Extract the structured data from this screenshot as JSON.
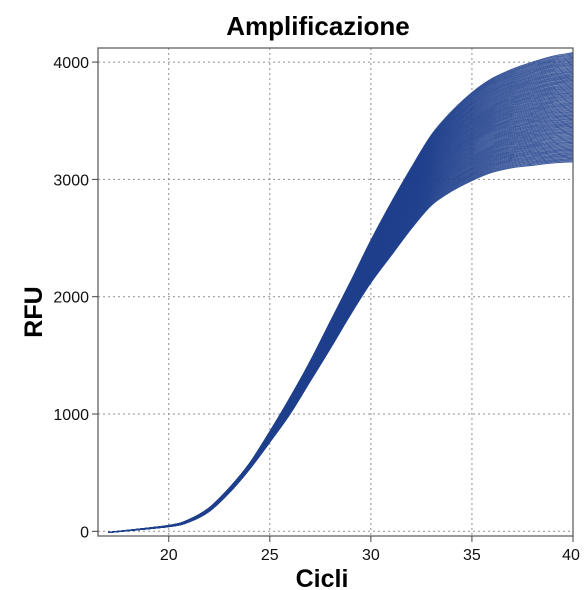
{
  "chart_data": {
    "type": "line",
    "title": "Amplificazione",
    "xlabel": "Cicli",
    "ylabel": "RFU",
    "xlim": [
      16.5,
      40
    ],
    "ylim": [
      -40,
      4120
    ],
    "xticks": [
      "20",
      "25",
      "30",
      "35",
      "40"
    ],
    "xtick_values": [
      20,
      25,
      30,
      35,
      40
    ],
    "yticks": [
      "0",
      "1000",
      "2000",
      "3000",
      "4000"
    ],
    "ytick_values": [
      0,
      1000,
      2000,
      3000,
      4000
    ],
    "grid": true,
    "series_color": "#1f3f8c",
    "series_count": 96,
    "series_envelope": {
      "x": [
        17,
        20,
        21,
        22,
        23,
        24,
        25,
        26,
        27,
        28,
        29,
        30,
        31,
        32,
        33,
        34,
        35,
        36,
        37,
        38,
        39,
        40
      ],
      "y_min": [
        -10,
        40,
        80,
        170,
        330,
        530,
        760,
        1000,
        1280,
        1560,
        1850,
        2120,
        2350,
        2580,
        2780,
        2900,
        2990,
        3060,
        3100,
        3120,
        3140,
        3150
      ],
      "y_max": [
        -10,
        50,
        100,
        200,
        370,
        580,
        850,
        1140,
        1450,
        1790,
        2130,
        2480,
        2800,
        3100,
        3380,
        3580,
        3740,
        3860,
        3940,
        4000,
        4050,
        4080
      ]
    }
  }
}
